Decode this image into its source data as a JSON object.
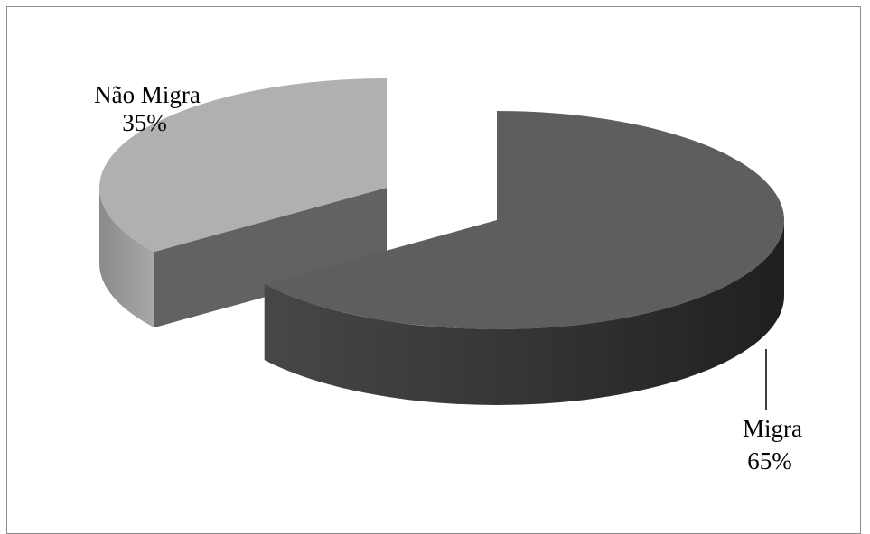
{
  "chart_data": {
    "type": "pie",
    "style": "3d-exploded",
    "slices": [
      {
        "label": "Migra",
        "value": 65,
        "value_label": "65%",
        "color": "#5e5e5e",
        "side_color": "#3a3a3a"
      },
      {
        "label": "Não Migra",
        "value": 35,
        "value_label": "35%",
        "color": "#b0b0b0",
        "side_color": "#6e6e6e"
      }
    ],
    "unit": "%"
  }
}
